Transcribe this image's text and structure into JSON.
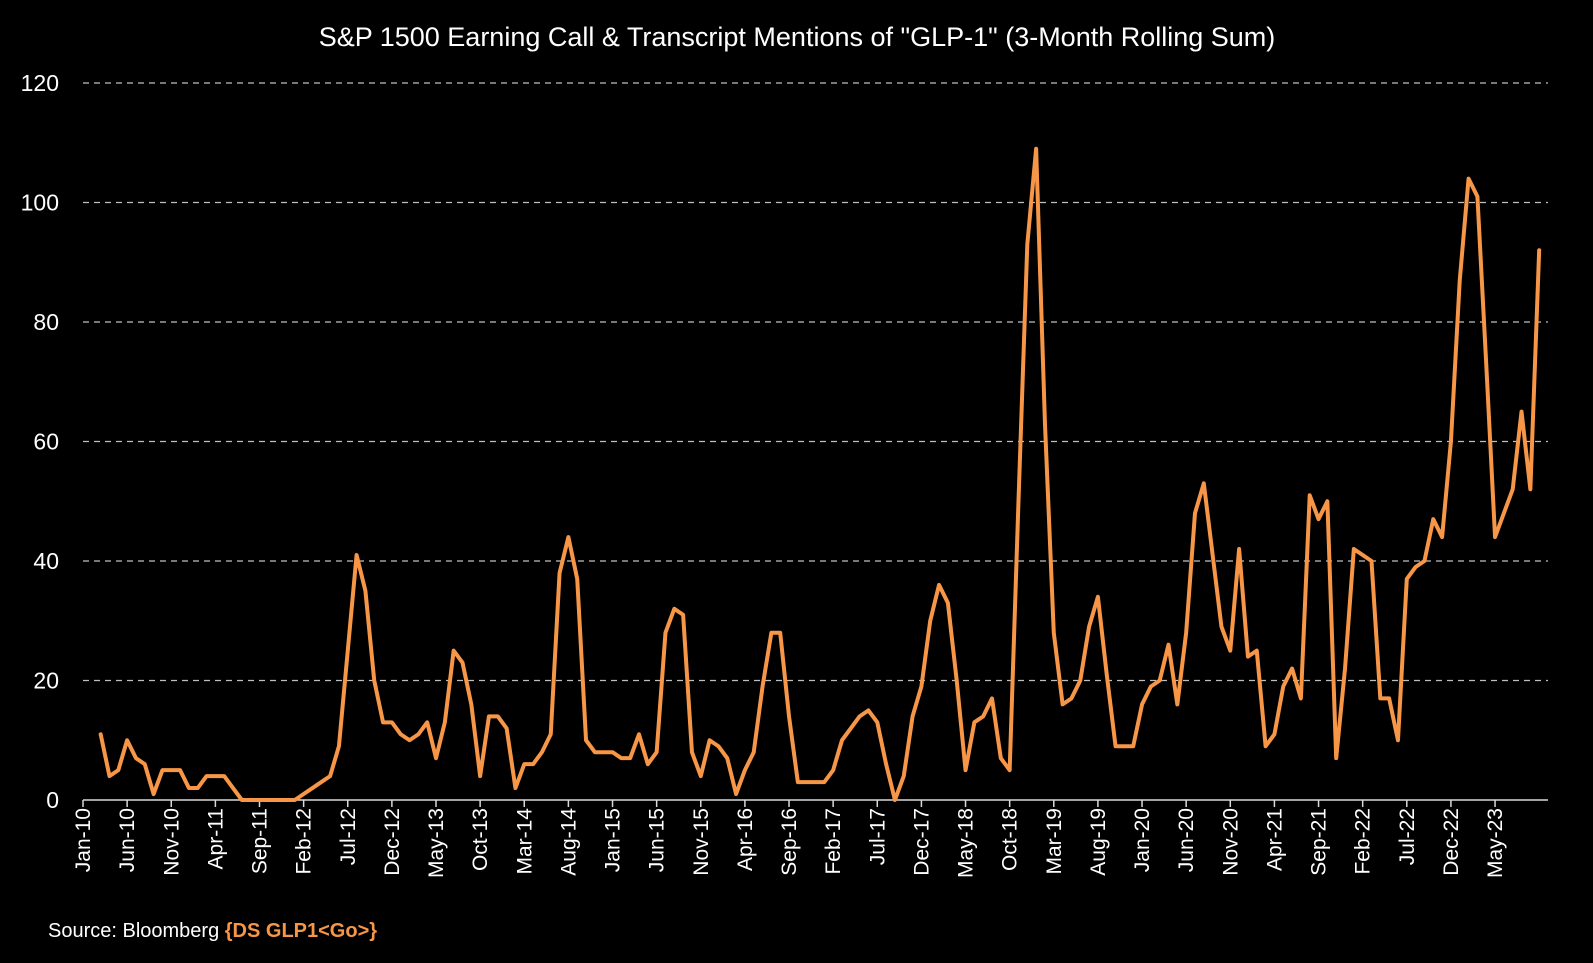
{
  "colors": {
    "background": "#000000",
    "line": "#F79646",
    "text": "#FFFFFF",
    "grid": "#BFBFBF",
    "axis": "#D9D9D9"
  },
  "chart_data": {
    "type": "line",
    "title": "S&P 1500 Earning Call & Transcript Mentions of \"GLP-1\" (3-Month Rolling Sum)",
    "xlabel": "",
    "ylabel": "",
    "ylim": [
      0,
      120
    ],
    "yticks": [
      0,
      20,
      40,
      60,
      80,
      100,
      120
    ],
    "grid": true,
    "x_start": "Jan-10",
    "x_step_months": 1,
    "xtick_every_months": 5,
    "xtick_labels": [
      "Jan-10",
      "Jun-10",
      "Nov-10",
      "Apr-11",
      "Sep-11",
      "Feb-12",
      "Jul-12",
      "Dec-12",
      "May-13",
      "Oct-13",
      "Mar-14",
      "Aug-14",
      "Jan-15",
      "Jun-15",
      "Nov-15",
      "Apr-16",
      "Sep-16",
      "Feb-17",
      "Jul-17",
      "Dec-17",
      "May-18",
      "Oct-18",
      "Mar-19",
      "Aug-19",
      "Jan-20",
      "Jun-20",
      "Nov-20",
      "Apr-21",
      "Sep-21",
      "Feb-22",
      "Jul-22",
      "Dec-22",
      "May-23"
    ],
    "series": [
      {
        "name": "GLP-1 mentions (3-month rolling sum)",
        "color": "#F79646",
        "start_month_index": 2,
        "values": [
          11,
          4,
          5,
          10,
          7,
          6,
          1,
          5,
          5,
          5,
          2,
          2,
          4,
          4,
          4,
          2,
          0,
          0,
          0,
          0,
          0,
          0,
          0,
          1,
          2,
          3,
          4,
          9,
          25,
          41,
          35,
          20,
          13,
          13,
          11,
          10,
          11,
          13,
          7,
          13,
          25,
          23,
          16,
          4,
          14,
          14,
          12,
          2,
          6,
          6,
          8,
          11,
          38,
          44,
          37,
          10,
          8,
          8,
          8,
          7,
          7,
          11,
          6,
          8,
          28,
          32,
          31,
          8,
          4,
          10,
          9,
          7,
          1,
          5,
          8,
          19,
          28,
          28,
          14,
          3,
          3,
          3,
          3,
          5,
          10,
          12,
          14,
          15,
          13,
          6,
          0,
          4,
          14,
          19,
          30,
          36,
          33,
          20,
          5,
          13,
          14,
          17,
          7,
          5,
          50,
          93,
          109,
          63,
          28,
          16,
          17,
          20,
          29,
          34,
          21,
          9,
          9,
          9,
          16,
          19,
          20,
          26,
          16,
          28,
          48,
          53,
          41,
          29,
          25,
          42,
          24,
          25,
          9,
          11,
          19,
          22,
          17,
          51,
          47,
          50,
          7,
          22,
          42,
          41,
          40,
          17,
          17,
          10,
          37,
          39,
          40,
          47,
          44,
          60,
          87,
          104,
          101,
          73,
          44,
          48,
          52,
          65,
          52,
          92
        ]
      }
    ]
  },
  "source": {
    "prefix": "Source: Bloomberg ",
    "ticker": "{DS GLP1<Go>}"
  }
}
